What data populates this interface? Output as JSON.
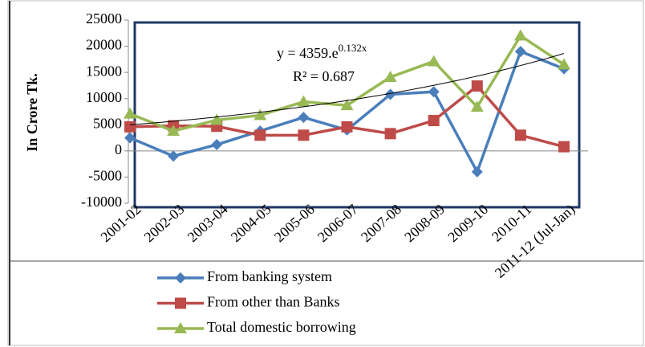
{
  "chart_data": {
    "type": "line",
    "y_label": "In Crore Tk.",
    "categories": [
      "2001-02",
      "2002-03",
      "2003-04",
      "2004-05",
      "2005-06",
      "2006-07",
      "2007-08",
      "2008-09",
      "2009-10",
      "2010-11",
      "2011-12 (Jul-Jan)"
    ],
    "series": [
      {
        "name": "From banking system",
        "color": "#4a7ebb",
        "marker": "diamond",
        "values": [
          2500,
          -1000,
          1200,
          3800,
          6400,
          4000,
          10800,
          11300,
          -4000,
          19000,
          15700
        ]
      },
      {
        "name": "From other than Banks",
        "color": "#be4b48",
        "marker": "square",
        "values": [
          4600,
          4800,
          4700,
          3000,
          3000,
          4600,
          3300,
          5800,
          12400,
          3000,
          800
        ]
      },
      {
        "name": "Total domestic borrowing",
        "color": "#98b954",
        "marker": "triangle",
        "values": [
          7100,
          3800,
          5900,
          6800,
          9400,
          8700,
          14100,
          17100,
          8400,
          22000,
          16500
        ]
      }
    ],
    "trendline": {
      "type": "exponential",
      "a": 4359,
      "b": 0.132,
      "label": "y = 4359.e",
      "label_exponent": "0.132x",
      "r2": 0.687,
      "r2_label": "R² = 0.687"
    },
    "ylim": [
      -10000,
      25000
    ],
    "yticks": [
      -10000,
      -5000,
      0,
      5000,
      10000,
      15000,
      20000,
      25000
    ],
    "grid": false,
    "legend": "bottom"
  }
}
